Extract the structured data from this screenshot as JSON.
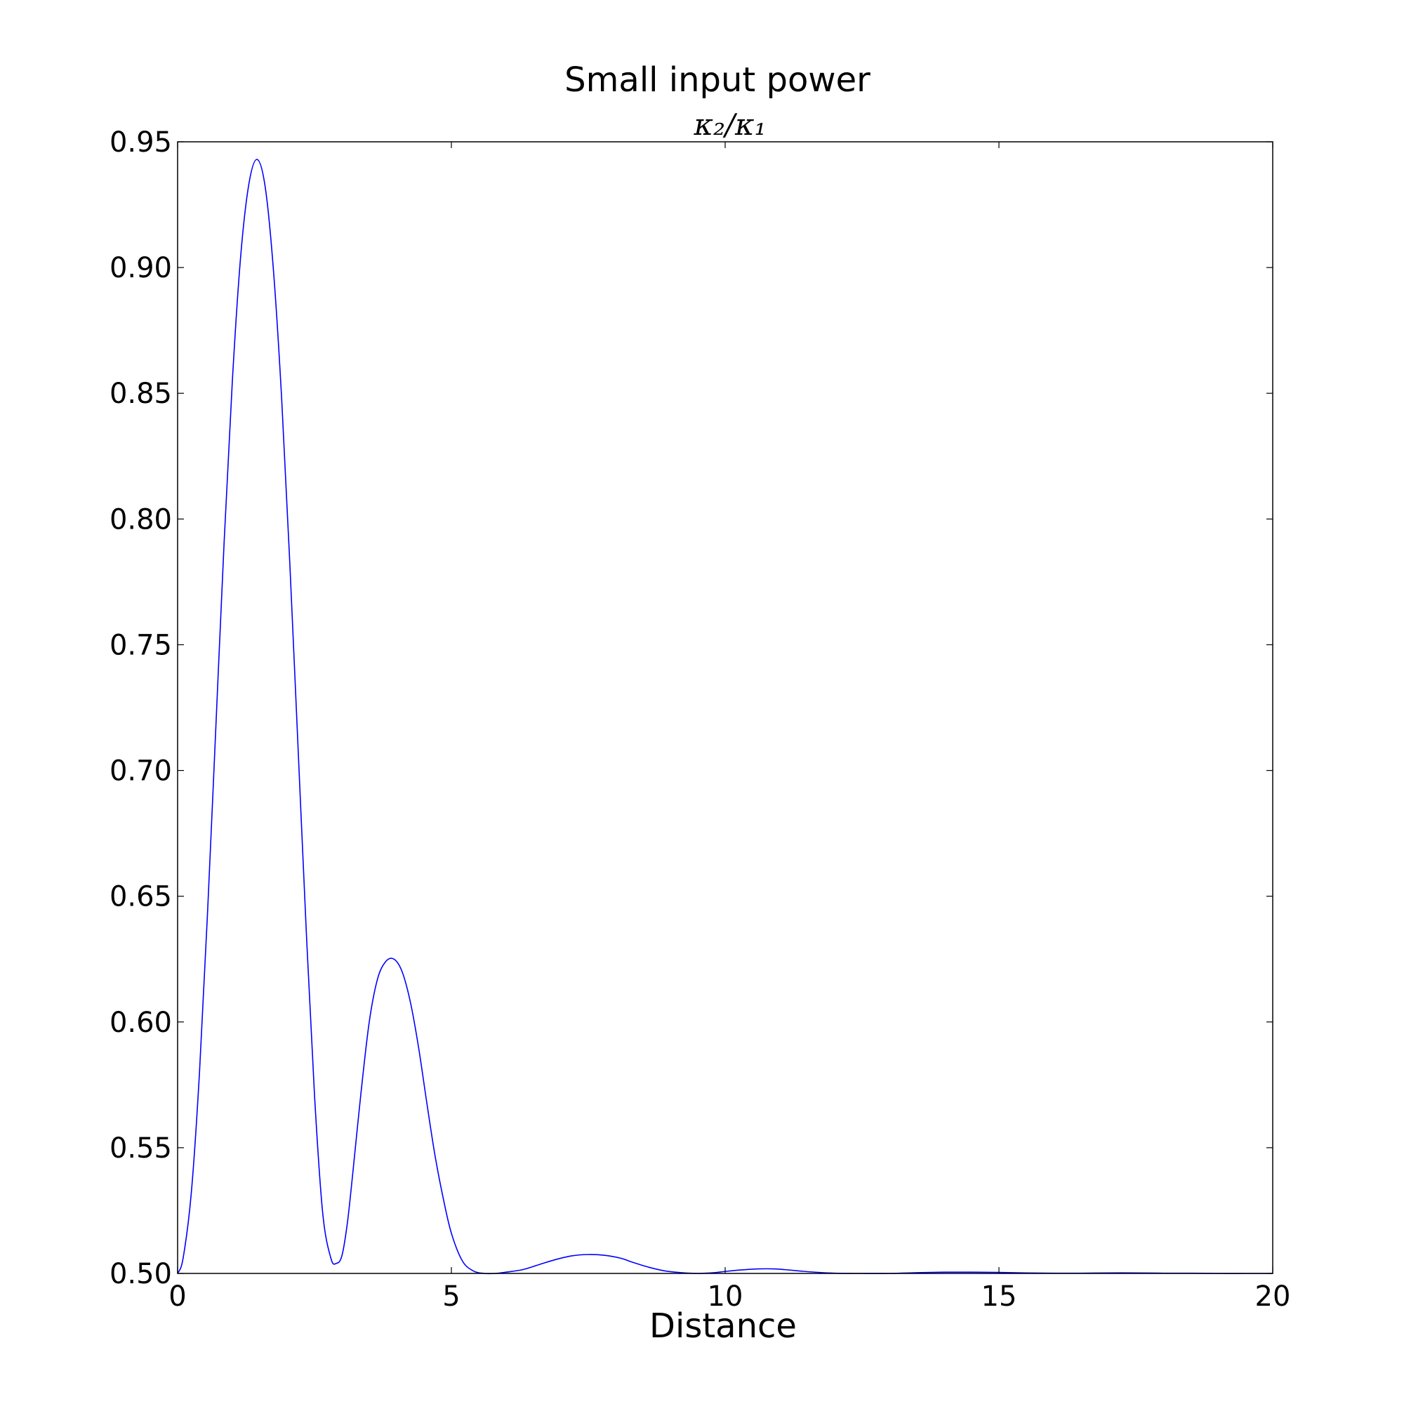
{
  "chart_data": {
    "type": "line",
    "title": "Small input power",
    "subtitle": "κ₂/κ₁",
    "xlabel": "Distance",
    "ylabel": "",
    "xlim": [
      0,
      20
    ],
    "ylim": [
      0.5,
      0.95
    ],
    "x_ticks": [
      "0",
      "5",
      "10",
      "15",
      "20"
    ],
    "y_ticks": [
      "0.50",
      "0.55",
      "0.60",
      "0.65",
      "0.70",
      "0.75",
      "0.80",
      "0.85",
      "0.90",
      "0.95"
    ],
    "grid": false,
    "line_color": "#0000ff",
    "series": [
      {
        "x": [
          0,
          0.1,
          0.25,
          0.4,
          0.55,
          0.7,
          0.85,
          1.0,
          1.15,
          1.3,
          1.45,
          1.6,
          1.75,
          1.9,
          2.05,
          2.2,
          2.35,
          2.5,
          2.65,
          2.8,
          2.9,
          3.0,
          3.1,
          3.2,
          3.35,
          3.5,
          3.65,
          3.8,
          3.95,
          4.1,
          4.25,
          4.4,
          4.55,
          4.7,
          4.85,
          5.0,
          5.2,
          5.4,
          5.6,
          5.8,
          6.0,
          6.3,
          6.6,
          6.9,
          7.2,
          7.5,
          7.8,
          8.1,
          8.3,
          8.6,
          8.9,
          9.2,
          9.5,
          9.8,
          10.0,
          10.3,
          10.6,
          10.9,
          11.1,
          11.4,
          11.7,
          12.0,
          12.5,
          13.0,
          13.5,
          14.0,
          14.5,
          15.0,
          15.5,
          16.0,
          16.5,
          17.0,
          17.5,
          18.0,
          18.5,
          19.0,
          19.5,
          20.0
        ],
        "values": [
          0.5,
          0.506,
          0.532,
          0.58,
          0.645,
          0.718,
          0.791,
          0.855,
          0.904,
          0.933,
          0.943,
          0.932,
          0.899,
          0.848,
          0.782,
          0.709,
          0.636,
          0.571,
          0.524,
          0.506,
          0.504,
          0.507,
          0.52,
          0.54,
          0.572,
          0.6,
          0.617,
          0.624,
          0.625,
          0.62,
          0.608,
          0.59,
          0.568,
          0.547,
          0.53,
          0.516,
          0.505,
          0.501,
          0.5,
          0.5,
          0.5005,
          0.5015,
          0.5035,
          0.5055,
          0.507,
          0.5075,
          0.5072,
          0.506,
          0.5045,
          0.5025,
          0.501,
          0.5003,
          0.5,
          0.5003,
          0.5008,
          0.5014,
          0.5018,
          0.5018,
          0.5015,
          0.5009,
          0.5004,
          0.5001,
          0.5,
          0.5,
          0.5003,
          0.5005,
          0.5005,
          0.5004,
          0.5002,
          0.5001,
          0.5001,
          0.5002,
          0.5002,
          0.5001,
          0.5001,
          0.5,
          0.5,
          0.5
        ]
      }
    ]
  }
}
